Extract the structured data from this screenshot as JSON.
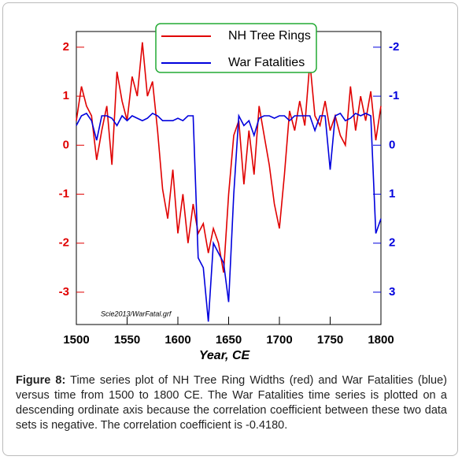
{
  "chart_data": {
    "type": "line",
    "x_label": "Year, CE",
    "source_note": "Scie2013/WarFatal.grf",
    "x": [
      1500,
      1505,
      1510,
      1515,
      1520,
      1525,
      1530,
      1535,
      1540,
      1545,
      1550,
      1555,
      1560,
      1565,
      1570,
      1575,
      1580,
      1585,
      1590,
      1595,
      1600,
      1605,
      1610,
      1615,
      1620,
      1625,
      1630,
      1635,
      1640,
      1645,
      1650,
      1655,
      1660,
      1665,
      1670,
      1675,
      1680,
      1685,
      1690,
      1695,
      1700,
      1705,
      1710,
      1715,
      1720,
      1725,
      1730,
      1735,
      1740,
      1745,
      1750,
      1755,
      1760,
      1765,
      1770,
      1775,
      1780,
      1785,
      1790,
      1795,
      1800
    ],
    "xlim": [
      1500,
      1800
    ],
    "xticks": [
      1500,
      1550,
      1600,
      1650,
      1700,
      1750,
      1800
    ],
    "ylim": [
      -3.66,
      2.32
    ],
    "yticks": [
      -3,
      -2,
      -1,
      0,
      1,
      2
    ],
    "y_color": "#e00000",
    "y2lim": [
      3.66,
      -2.32
    ],
    "y2ticks": [
      3,
      2,
      1,
      0,
      -1,
      -2
    ],
    "y2_color": "#0000dd",
    "legend": "top-center",
    "series": [
      {
        "name": "NH Tree Rings",
        "color": "#e00000",
        "values": [
          0.5,
          1.2,
          0.8,
          0.6,
          -0.3,
          0.3,
          0.8,
          -0.4,
          1.5,
          0.9,
          0.5,
          1.4,
          1.0,
          2.1,
          1.0,
          1.3,
          0.3,
          -0.9,
          -1.5,
          -0.5,
          -1.8,
          -1.0,
          -2.0,
          -1.2,
          -1.8,
          -1.6,
          -2.2,
          -1.7,
          -2.0,
          -2.6,
          -1.0,
          0.2,
          0.5,
          -0.8,
          0.3,
          -0.6,
          0.8,
          0.2,
          -0.4,
          -1.2,
          -1.7,
          -0.6,
          0.7,
          0.3,
          0.9,
          0.4,
          1.7,
          0.6,
          0.4,
          0.9,
          0.3,
          0.6,
          0.2,
          0.0,
          1.2,
          0.3,
          1.0,
          0.5,
          1.1,
          0.1,
          0.8
        ]
      },
      {
        "name": "War Fatalities",
        "color": "#0000dd",
        "axis": "y2",
        "values": [
          -0.4,
          -0.6,
          -0.65,
          -0.5,
          -0.1,
          -0.6,
          -0.6,
          -0.55,
          -0.4,
          -0.6,
          -0.5,
          -0.6,
          -0.55,
          -0.5,
          -0.55,
          -0.65,
          -0.6,
          -0.5,
          -0.5,
          -0.5,
          -0.55,
          -0.5,
          -0.6,
          -0.6,
          2.3,
          2.5,
          3.6,
          2.0,
          2.2,
          2.4,
          3.2,
          1.0,
          -0.6,
          -0.4,
          -0.5,
          -0.2,
          -0.55,
          -0.6,
          -0.6,
          -0.55,
          -0.6,
          -0.6,
          -0.5,
          -0.6,
          -0.6,
          -0.6,
          -0.6,
          -0.3,
          -0.6,
          -0.6,
          0.5,
          -0.6,
          -0.65,
          -0.5,
          -0.55,
          -0.65,
          -0.6,
          -0.65,
          -0.6,
          1.8,
          1.5
        ]
      }
    ]
  },
  "caption": {
    "label": "Figure 8:",
    "text": "Time series plot of NH Tree Ring Widths (red) and War Fatalities (blue) versus time from 1500 to 1800 CE. The War Fatalities time series is plotted on a descending ordinate axis because the correlation coefficient between these two data sets is negative. The correlation coefficient is -0.4180."
  }
}
